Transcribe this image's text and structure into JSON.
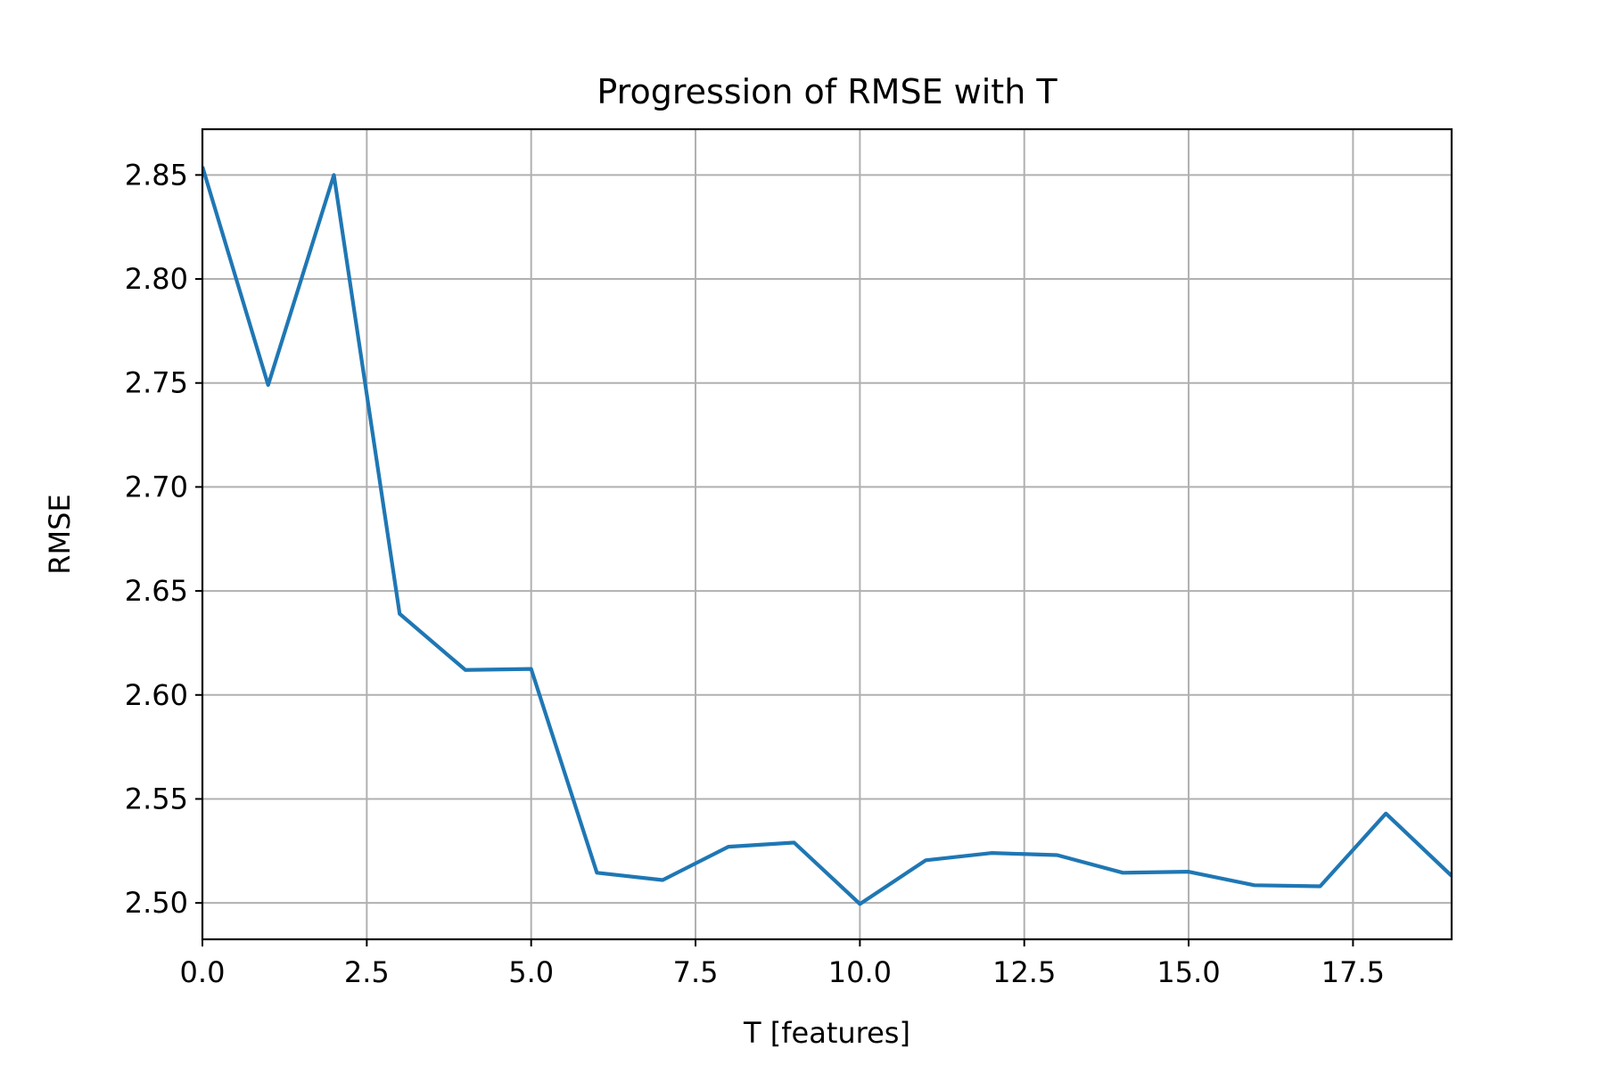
{
  "chart_data": {
    "type": "line",
    "title": "Progression of RMSE with T",
    "xlabel": "T [features]",
    "ylabel": "RMSE",
    "xlim": [
      0,
      19
    ],
    "ylim": [
      2.4825,
      2.872
    ],
    "xticks": [
      0.0,
      2.5,
      5.0,
      7.5,
      10.0,
      12.5,
      15.0,
      17.5
    ],
    "xtick_labels": [
      "0.0",
      "2.5",
      "5.0",
      "7.5",
      "10.0",
      "12.5",
      "15.0",
      "17.5"
    ],
    "yticks": [
      2.5,
      2.55,
      2.6,
      2.65,
      2.7,
      2.75,
      2.8,
      2.85
    ],
    "ytick_labels": [
      "2.50",
      "2.55",
      "2.60",
      "2.65",
      "2.70",
      "2.75",
      "2.80",
      "2.85"
    ],
    "grid": true,
    "series": [
      {
        "color": "#1f77b4",
        "x": [
          0,
          1,
          2,
          3,
          4,
          5,
          6,
          7,
          8,
          9,
          10,
          11,
          12,
          13,
          14,
          15,
          16,
          17,
          18,
          19
        ],
        "y": [
          2.854,
          2.749,
          2.85,
          2.639,
          2.612,
          2.6125,
          2.5145,
          2.511,
          2.527,
          2.529,
          2.4995,
          2.5205,
          2.524,
          2.523,
          2.5145,
          2.515,
          2.5085,
          2.508,
          2.543,
          2.513
        ]
      }
    ]
  }
}
